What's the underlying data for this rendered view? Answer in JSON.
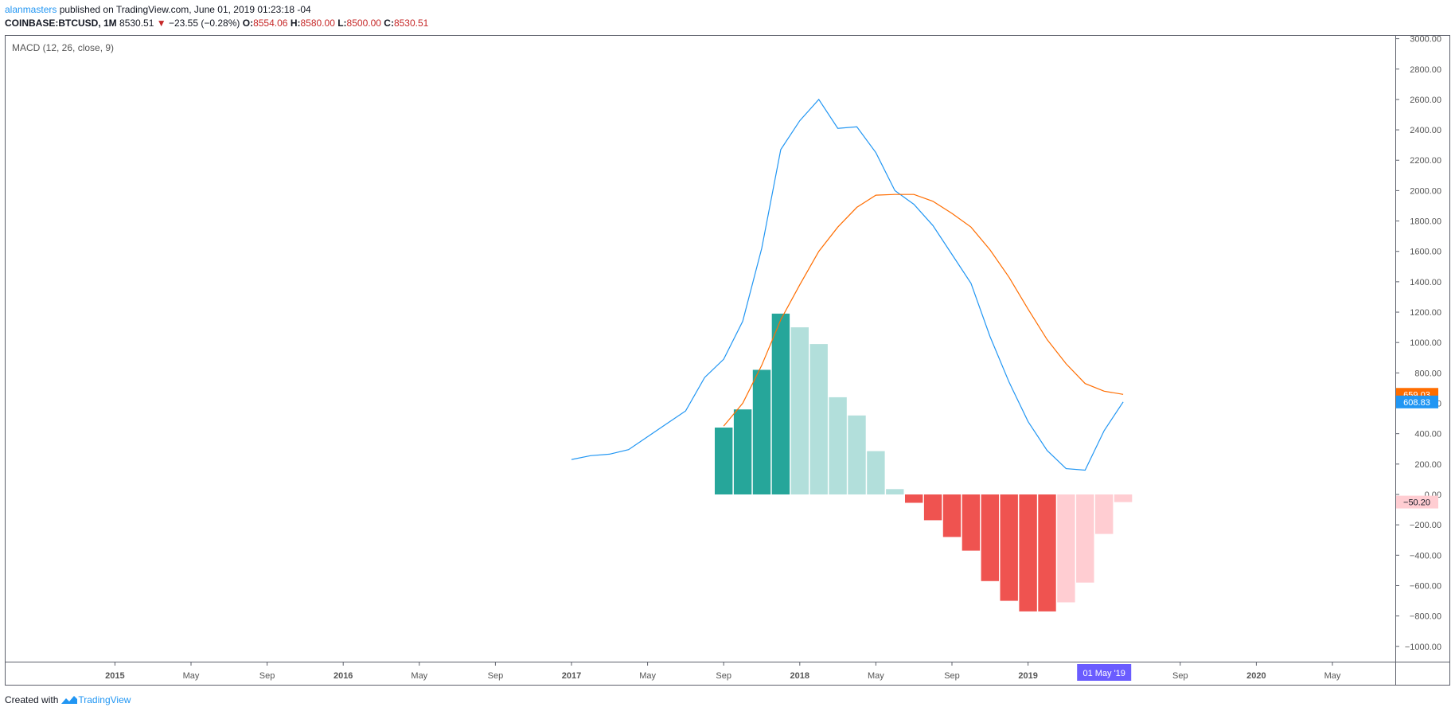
{
  "header": {
    "author": "alanmasters",
    "published_text": " published on TradingView.com, June 01, 2019 01:23:18 -04",
    "symbol": "COINBASE:BTCUSD, 1M",
    "last": "8530.51",
    "arrow": "▼",
    "change": "−23.55 (−0.28%)",
    "open_label": "O:",
    "open": "8554.06",
    "high_label": "H:",
    "high": "8580.00",
    "low_label": "L:",
    "low": "8500.00",
    "close_label": "C:",
    "close": "8530.51"
  },
  "footer": {
    "created_with": "Created with",
    "brand": "TradingView"
  },
  "colors": {
    "macd": "#2196f3",
    "signal": "#ff6d00",
    "hist_pos_strong": "#26a69a",
    "hist_pos_weak": "#b2dfdb",
    "hist_neg_strong": "#ef5350",
    "hist_neg_weak": "#ffcdd2",
    "crosshair": "#6a5cff"
  },
  "chart_data": {
    "type": "line",
    "title": "MACD (12, 26, close, 9)",
    "ylim": [
      -1100,
      3050
    ],
    "y_ticks": [
      "3000.00",
      "2800.00",
      "2600.00",
      "2400.00",
      "2200.00",
      "2000.00",
      "1800.00",
      "1600.00",
      "1400.00",
      "1200.00",
      "1000.00",
      "800.00",
      "600.00",
      "400.00",
      "200.00",
      "0.00",
      "−200.00",
      "−400.00",
      "−600.00",
      "−800.00",
      "−1000.00"
    ],
    "y_tick_values": [
      3000,
      2800,
      2600,
      2400,
      2200,
      2000,
      1800,
      1600,
      1400,
      1200,
      1000,
      800,
      600,
      400,
      200,
      0,
      -200,
      -400,
      -600,
      -800,
      -1000
    ],
    "x_ticks": [
      {
        "label": "2015",
        "index": -24,
        "bold": true
      },
      {
        "label": "May",
        "index": -20
      },
      {
        "label": "Sep",
        "index": -16
      },
      {
        "label": "2016",
        "index": -12,
        "bold": true
      },
      {
        "label": "May",
        "index": -8
      },
      {
        "label": "Sep",
        "index": -4
      },
      {
        "label": "2017",
        "index": 0,
        "bold": true
      },
      {
        "label": "May",
        "index": 4
      },
      {
        "label": "Sep",
        "index": 8
      },
      {
        "label": "2018",
        "index": 12,
        "bold": true
      },
      {
        "label": "May",
        "index": 16
      },
      {
        "label": "Sep",
        "index": 20
      },
      {
        "label": "2019",
        "index": 24,
        "bold": true
      },
      {
        "label": "Sep",
        "index": 32
      },
      {
        "label": "2020",
        "index": 36,
        "bold": true
      },
      {
        "label": "May",
        "index": 40
      }
    ],
    "x_index_note": "index = months since Jan 2017",
    "crosshair": {
      "label": "01 May '19",
      "index": 28
    },
    "series": [
      {
        "name": "MACD",
        "x": [
          0,
          1,
          2,
          3,
          4,
          5,
          6,
          7,
          8,
          9,
          10,
          11,
          12,
          13,
          14,
          15,
          16,
          17,
          18,
          19,
          20,
          21,
          22,
          23,
          24,
          25,
          26,
          27,
          28,
          29
        ],
        "values": [
          230,
          255,
          265,
          295,
          380,
          465,
          550,
          770,
          890,
          1140,
          1620,
          2270,
          2460,
          2600,
          2410,
          2420,
          2250,
          2000,
          1910,
          1770,
          1580,
          1390,
          1040,
          740,
          480,
          290,
          170,
          160,
          420,
          608.83
        ],
        "last_label": "608.83"
      },
      {
        "name": "Signal",
        "x": [
          8,
          9,
          10,
          11,
          12,
          13,
          14,
          15,
          16,
          17,
          18,
          19,
          20,
          21,
          22,
          23,
          24,
          25,
          26,
          27,
          28,
          29
        ],
        "values": [
          450,
          600,
          850,
          1150,
          1380,
          1600,
          1760,
          1890,
          1970,
          1975,
          1975,
          1930,
          1850,
          1760,
          1610,
          1430,
          1220,
          1020,
          860,
          730,
          680,
          659.03
        ],
        "last_label": "659.03"
      },
      {
        "name": "Histogram",
        "x": [
          8,
          9,
          10,
          11,
          12,
          13,
          14,
          15,
          16,
          17,
          18,
          19,
          20,
          21,
          22,
          23,
          24,
          25,
          26,
          27,
          28,
          29
        ],
        "values": [
          440,
          560,
          820,
          1190,
          1100,
          990,
          640,
          520,
          285,
          35,
          -55,
          -170,
          -280,
          -370,
          -570,
          -700,
          -770,
          -770,
          -710,
          -580,
          -260,
          -50.2
        ],
        "last_label": "−50.20"
      }
    ]
  }
}
